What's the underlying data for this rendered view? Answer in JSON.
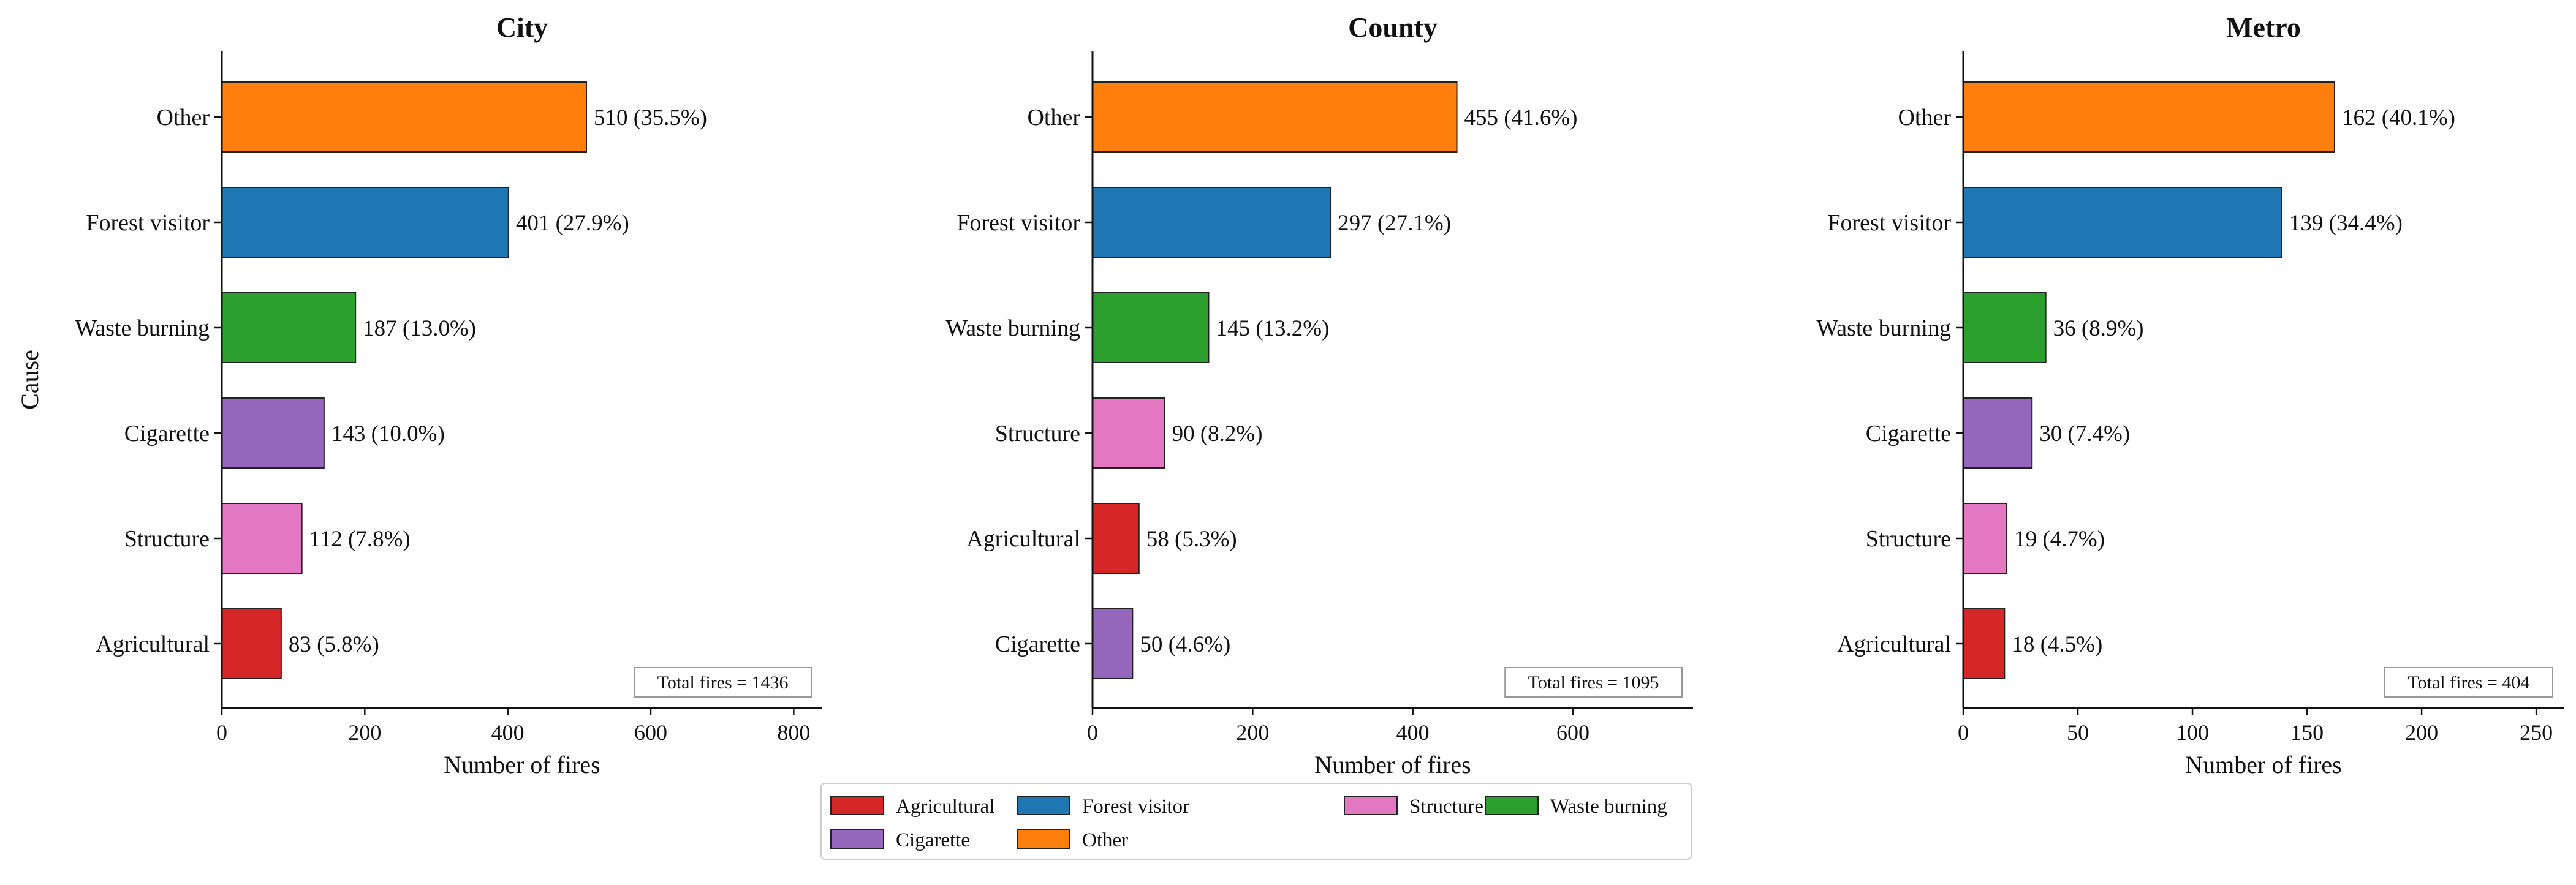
{
  "colors": {
    "Agricultural": "#d62728",
    "Forest visitor": "#1f77b4",
    "Structure": "#e377c2",
    "Waste burning": "#2ca02c",
    "Cigarette": "#9467bd",
    "Other": "#ff7f0e"
  },
  "legend": {
    "items": [
      "Agricultural",
      "Forest visitor",
      "Structure",
      "Waste burning",
      "Cigarette",
      "Other"
    ]
  },
  "chart_data": [
    {
      "type": "bar",
      "orientation": "horizontal",
      "title": "City",
      "xlabel": "Number of fires",
      "ylabel": "Cause",
      "xlim": [
        0,
        840
      ],
      "xticks": [
        0,
        200,
        400,
        600,
        800
      ],
      "categories": [
        "Other",
        "Forest visitor",
        "Waste burning",
        "Cigarette",
        "Structure",
        "Agricultural"
      ],
      "values": [
        510,
        401,
        187,
        143,
        112,
        83
      ],
      "labels": [
        "510 (35.5%)",
        "401 (27.9%)",
        "187 (13.0%)",
        "143 (10.0%)",
        "112 (7.8%)",
        "83 (5.8%)"
      ],
      "annotation": "Total fires = 1436"
    },
    {
      "type": "bar",
      "orientation": "horizontal",
      "title": "County",
      "xlabel": "Number of fires",
      "ylabel": "",
      "xlim": [
        0,
        750
      ],
      "xticks": [
        0,
        200,
        400,
        600
      ],
      "categories": [
        "Other",
        "Forest visitor",
        "Waste burning",
        "Structure",
        "Agricultural",
        "Cigarette"
      ],
      "values": [
        455,
        297,
        145,
        90,
        58,
        50
      ],
      "labels": [
        "455 (41.6%)",
        "297 (27.1%)",
        "145 (13.2%)",
        "90 (8.2%)",
        "58 (5.3%)",
        "50 (4.6%)"
      ],
      "annotation": "Total fires = 1095"
    },
    {
      "type": "bar",
      "orientation": "horizontal",
      "title": "Metro",
      "xlabel": "Number of fires",
      "ylabel": "",
      "xlim": [
        0,
        262
      ],
      "xticks": [
        0,
        50,
        100,
        150,
        200,
        250
      ],
      "categories": [
        "Other",
        "Forest visitor",
        "Waste burning",
        "Cigarette",
        "Structure",
        "Agricultural"
      ],
      "values": [
        162,
        139,
        36,
        30,
        19,
        18
      ],
      "labels": [
        "162 (40.1%)",
        "139 (34.4%)",
        "36 (8.9%)",
        "30 (7.4%)",
        "19 (4.7%)",
        "18 (4.5%)"
      ],
      "annotation": "Total fires = 404"
    }
  ]
}
